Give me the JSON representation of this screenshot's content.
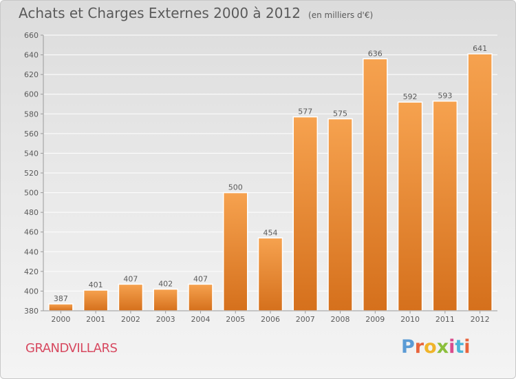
{
  "header": {
    "title": "Achats et Charges Externes 2000 à 2012",
    "subtitle": "(en milliers d'€)"
  },
  "footer": {
    "commune": "GRANDVILLARS",
    "logo": [
      "P",
      "r",
      "o",
      "x",
      "i",
      "t",
      "i"
    ]
  },
  "colors": {
    "bar_light": "#f6a24f",
    "bar_dark": "#d5701c",
    "grid": "#ffffff",
    "text": "#5a5a5a",
    "commune": "#d7485f"
  },
  "chart_data": {
    "type": "bar",
    "title": "Achats et Charges Externes 2000 à 2012",
    "subtitle": "(en milliers d'€)",
    "xlabel": "",
    "ylabel": "",
    "categories": [
      "2000",
      "2001",
      "2002",
      "2003",
      "2004",
      "2005",
      "2006",
      "2007",
      "2008",
      "2009",
      "2010",
      "2011",
      "2012"
    ],
    "values": [
      387,
      401,
      407,
      402,
      407,
      500,
      454,
      577,
      575,
      636,
      592,
      593,
      641
    ],
    "ylim": [
      380,
      660
    ],
    "yticks": [
      380,
      400,
      420,
      440,
      460,
      480,
      500,
      520,
      540,
      560,
      580,
      600,
      620,
      640,
      660
    ],
    "grid": true,
    "data_labels": true
  }
}
